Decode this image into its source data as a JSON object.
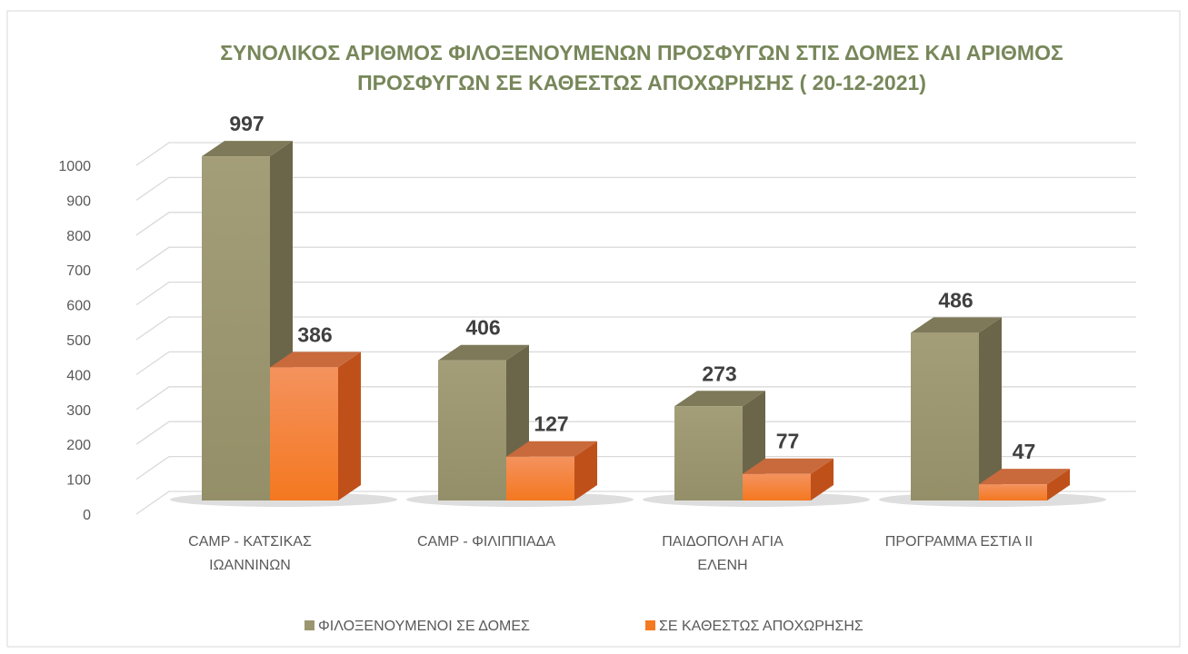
{
  "chart_data": {
    "type": "bar3d",
    "title": "ΣΥΝΟΛΙΚΟΣ ΑΡΙΘΜΟΣ ΦΙΛΟΞΕΝΟΥΜΕΝΩΝ ΠΡΟΣΦΥΓΩΝ ΣΤΙΣ ΔΟΜΕΣ ΚΑΙ ΑΡΙΘΜΟΣ ΠΡΟΣΦΥΓΩΝ ΣΕ ΚΑΘΕΣΤΩΣ ΑΠΟΧΩΡΗΣΗΣ ( 20-12-2021)",
    "categories": [
      "CAMP  - ΚΑΤΣΙΚΑΣ ΙΩΑΝΝΙΝΩΝ",
      "CAMP -  ΦΙΛΙΠΠΙΑΔΑ",
      "ΠΑΙΔΟΠΟΛΗ ΑΓΙΑ ΕΛΕΝΗ",
      "ΠΡΟΓΡΑΜΜΑ ΕΣΤΙΑ ΙΙ"
    ],
    "series": [
      {
        "name": "ΦΙΛΟΞΕΝΟΥΜΕΝΟΙ ΣΕ ΔΟΜΕΣ",
        "color": "#9b9670",
        "values": [
          997,
          406,
          273,
          486
        ]
      },
      {
        "name": "ΣΕ ΚΑΘΕΣΤΩΣ ΑΠΟΧΩΡΗΣΗΣ",
        "color": "#f47a20",
        "values": [
          386,
          127,
          77,
          47
        ]
      }
    ],
    "ylim": [
      0,
      1000
    ],
    "yticks": [
      0,
      100,
      200,
      300,
      400,
      500,
      600,
      700,
      800,
      900,
      1000
    ],
    "grid": true,
    "legend": "bottom"
  }
}
